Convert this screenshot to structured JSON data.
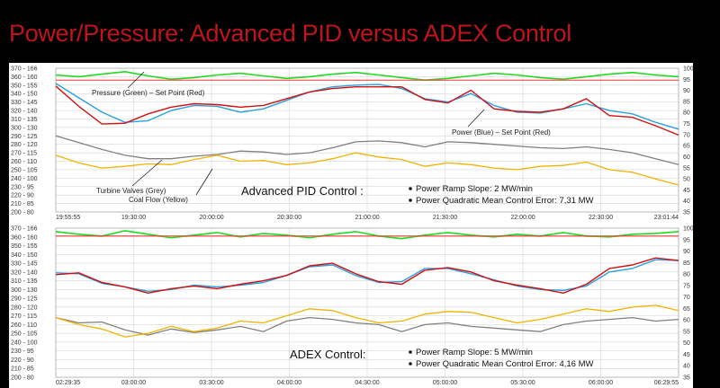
{
  "title": "Power/Pressure: Advanced PID versus ADEX Control",
  "colors": {
    "pressure": "#22d822",
    "setpoint_pressure": "#ff3030",
    "power": "#2aa0e0",
    "setpoint_power": "#d01010",
    "valves": "#808080",
    "coal": "#f2b300",
    "grid": "#cccccc",
    "background": "#ffffff"
  },
  "chart_data": [
    {
      "type": "line",
      "title": "Advanced PID Control :",
      "metrics": [
        "Power Ramp Slope: 2 MW/min",
        "Power Quadratic Mean Control Error: 7,31 MW"
      ],
      "annotations": [
        "Pressure (Green) – Set Point  (Red)",
        "Power (Blue) – Set Point (Red)",
        "Turbine Valves (Grey)",
        "Coal Flow (Yellow)"
      ],
      "y_left_ticks": [
        "370 - 166",
        "360 - 160",
        "350 - 155",
        "340 - 150",
        "330 - 145",
        "320 - 140",
        "310 - 135",
        "300 - 130",
        "290 - 125",
        "280 - 120",
        "270 - 115",
        "260 - 110",
        "250 - 105",
        "240 - 100",
        "230 - 95",
        "220 - 90",
        "210 - 85",
        "200 - 80"
      ],
      "y_right_ticks": [
        "100",
        "95",
        "90",
        "85",
        "80",
        "75",
        "70",
        "65",
        "60",
        "55",
        "50",
        "45",
        "40",
        "35"
      ],
      "x_ticks": [
        "19:55:55",
        "19:30:00",
        "20:00:00",
        "20:30:00",
        "21:00:00",
        "21:30:00",
        "22:00:00",
        "22:30:00",
        "23:01:44"
      ],
      "ylim": [
        200,
        370
      ],
      "series": [
        {
          "name": "Pressure (Green)",
          "values": [
            362,
            360,
            363,
            366,
            361,
            357,
            359,
            362,
            364,
            361,
            358,
            360,
            363,
            365,
            362,
            359,
            356,
            358,
            361,
            364,
            362,
            359,
            357,
            360,
            363,
            365,
            362,
            360
          ]
        },
        {
          "name": "Pressure Set Point (Red)",
          "values": [
            356,
            356,
            356,
            356,
            356,
            356,
            356,
            356,
            356,
            356,
            356,
            356,
            356,
            356,
            356,
            356,
            356,
            356,
            356,
            356,
            356,
            356,
            356,
            356,
            356,
            356,
            356,
            356
          ]
        },
        {
          "name": "Power (Blue)",
          "values": [
            352,
            335,
            318,
            306,
            308,
            320,
            326,
            325,
            318,
            322,
            332,
            342,
            348,
            350,
            351,
            346,
            334,
            330,
            340,
            326,
            318,
            317,
            322,
            328,
            320,
            316,
            306,
            298
          ]
        },
        {
          "name": "Power Set Point (Red)",
          "values": [
            349,
            325,
            304,
            305,
            316,
            324,
            328,
            327,
            324,
            326,
            334,
            342,
            346,
            348,
            348,
            348,
            333,
            329,
            344,
            322,
            319,
            318,
            322,
            334,
            314,
            312,
            302,
            291
          ]
        },
        {
          "name": "Turbine Valves (Grey)",
          "values": [
            290,
            282,
            274,
            267,
            263,
            263,
            266,
            268,
            272,
            271,
            268,
            270,
            276,
            283,
            284,
            282,
            277,
            283,
            282,
            280,
            278,
            276,
            275,
            277,
            274,
            270,
            263,
            256
          ]
        },
        {
          "name": "Coal Flow (Yellow)",
          "values": [
            267,
            258,
            252,
            254,
            257,
            256,
            262,
            267,
            260,
            261,
            256,
            258,
            263,
            270,
            265,
            262,
            254,
            258,
            256,
            252,
            250,
            254,
            255,
            259,
            250,
            247,
            239,
            232
          ]
        }
      ]
    },
    {
      "type": "line",
      "title": "ADEX Control:",
      "metrics": [
        "Power Ramp Slope: 5 MW/min",
        "Power Quadratic Mean Control Error: 4,16 MW"
      ],
      "annotations": [],
      "y_left_ticks": [
        "370 - 166",
        "360 - 160",
        "350 - 155",
        "340 - 150",
        "330 - 145",
        "320 - 140",
        "310 - 135",
        "300 - 130",
        "290 - 125",
        "280 - 120",
        "270 - 115",
        "260 - 110",
        "250 - 105",
        "240 - 100",
        "230 - 95",
        "220 - 90",
        "210 - 85",
        "200 - 80"
      ],
      "y_right_ticks": [
        "100",
        "95",
        "90",
        "85",
        "80",
        "75",
        "70",
        "65",
        "60",
        "55",
        "50",
        "45",
        "40",
        "35"
      ],
      "x_ticks": [
        "02:29:35",
        "03:00:00",
        "03:30:00",
        "04:00:00",
        "04:30:00",
        "05:00:00",
        "05:30:00",
        "06:00:00",
        "06:29:55"
      ],
      "ylim": [
        200,
        370
      ],
      "series": [
        {
          "name": "Pressure (Green)",
          "values": [
            366,
            363,
            361,
            367,
            363,
            359,
            362,
            365,
            360,
            364,
            362,
            359,
            363,
            366,
            361,
            358,
            362,
            365,
            362,
            360,
            363,
            361,
            365,
            361,
            360,
            363,
            364,
            366
          ]
        },
        {
          "name": "Pressure Set Point (Red)",
          "values": [
            361,
            361,
            361,
            361,
            361,
            361,
            361,
            361,
            361,
            361,
            361,
            361,
            361,
            361,
            361,
            361,
            361,
            361,
            361,
            361,
            361,
            361,
            361,
            361,
            361,
            361,
            361,
            361
          ]
        },
        {
          "name": "Power (Blue)",
          "values": [
            319,
            318,
            307,
            303,
            298,
            300,
            305,
            303,
            305,
            308,
            316,
            326,
            328,
            316,
            308,
            309,
            324,
            324,
            318,
            311,
            304,
            300,
            299,
            304,
            320,
            324,
            334,
            333
          ]
        },
        {
          "name": "Power Set Point (Red)",
          "values": [
            317,
            319,
            308,
            303,
            296,
            301,
            304,
            301,
            306,
            310,
            316,
            327,
            330,
            318,
            309,
            306,
            322,
            325,
            320,
            310,
            305,
            301,
            296,
            306,
            324,
            328,
            336,
            333
          ]
        },
        {
          "name": "Turbine Valves (Grey)",
          "values": [
            268,
            262,
            263,
            254,
            248,
            255,
            251,
            254,
            258,
            252,
            264,
            268,
            266,
            262,
            260,
            252,
            260,
            262,
            258,
            256,
            254,
            252,
            260,
            264,
            266,
            268,
            264,
            266
          ]
        },
        {
          "name": "Coal Flow (Yellow)",
          "values": [
            268,
            260,
            255,
            246,
            250,
            258,
            252,
            256,
            264,
            262,
            270,
            278,
            276,
            268,
            262,
            264,
            272,
            275,
            274,
            268,
            262,
            266,
            272,
            278,
            275,
            280,
            282,
            276
          ]
        }
      ]
    }
  ]
}
